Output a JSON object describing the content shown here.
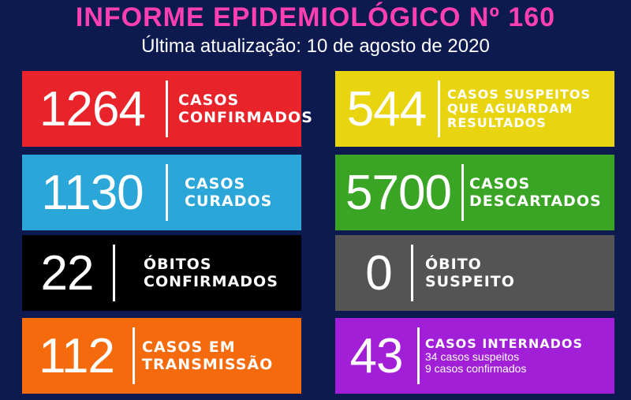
{
  "header": {
    "title": "INFORME EPIDEMIOLÓGICO Nº 160",
    "subtitle": "Última atualização: 10 de agosto de 2020"
  },
  "cards": [
    {
      "number": "1264",
      "line1": "CASOS",
      "line2": "CONFIRMADOS",
      "color": "#e8232a"
    },
    {
      "number": "544",
      "line1": "CASOS SUSPEITOS",
      "line2": "QUE AGUARDAM",
      "line3": "RESULTADOS",
      "color": "#e8d50f"
    },
    {
      "number": "1130",
      "line1": "CASOS",
      "line2": "CURADOS",
      "color": "#2aa6d9"
    },
    {
      "number": "5700",
      "line1": "CASOS",
      "line2": "DESCARTADOS",
      "color": "#3aa424"
    },
    {
      "number": "22",
      "line1": "ÓBITOS",
      "line2": "CONFIRMADOS",
      "color": "#000000"
    },
    {
      "number": "0",
      "line1": "ÓBITO",
      "line2": "SUSPEITO",
      "color": "#545454"
    },
    {
      "number": "112",
      "line1": "CASOS EM",
      "line2": "TRANSMISSÃO",
      "color": "#f46a0c"
    },
    {
      "number": "43",
      "line1": "CASOS INTERNADOS",
      "sub1": "34 casos suspeitos",
      "sub2": "9 casos confirmados",
      "color": "#a21fd8"
    }
  ],
  "colors": {
    "background": "#0d1a4f",
    "title": "#ff3fb2"
  }
}
